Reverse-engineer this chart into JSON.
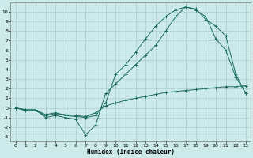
{
  "xlabel": "Humidex (Indice chaleur)",
  "bg_color": "#cceaea",
  "grid_color": "#aacccc",
  "line_color": "#1a6b5a",
  "xlim": [
    -0.5,
    23.5
  ],
  "ylim": [
    -3.5,
    11
  ],
  "xticks": [
    0,
    1,
    2,
    3,
    4,
    5,
    6,
    7,
    8,
    9,
    10,
    11,
    12,
    13,
    14,
    15,
    16,
    17,
    18,
    19,
    20,
    21,
    22,
    23
  ],
  "yticks": [
    -3,
    -2,
    -1,
    0,
    1,
    2,
    3,
    4,
    5,
    6,
    7,
    8,
    9,
    10
  ],
  "line_slowly_rising_x": [
    0,
    1,
    2,
    3,
    4,
    5,
    6,
    7,
    8,
    9,
    10,
    11,
    12,
    13,
    14,
    15,
    16,
    17,
    18,
    19,
    20,
    21,
    22,
    23
  ],
  "line_slowly_rising_y": [
    0,
    -0.3,
    -0.3,
    -0.8,
    -0.6,
    -0.7,
    -0.8,
    -0.9,
    -0.5,
    0.2,
    0.5,
    0.8,
    1.0,
    1.2,
    1.4,
    1.6,
    1.7,
    1.8,
    1.9,
    2.0,
    2.1,
    2.2,
    2.2,
    2.3
  ],
  "line_upper_x": [
    0,
    1,
    2,
    3,
    4,
    5,
    6,
    7,
    8,
    9,
    10,
    11,
    12,
    13,
    14,
    15,
    16,
    17,
    18,
    19,
    20,
    21,
    22,
    23
  ],
  "line_upper_y": [
    0,
    -0.2,
    -0.2,
    -0.7,
    -0.5,
    -0.8,
    -0.9,
    -1.0,
    -0.8,
    0.5,
    3.5,
    4.5,
    5.8,
    7.2,
    8.5,
    9.5,
    10.2,
    10.5,
    10.3,
    9.2,
    8.5,
    7.5,
    3.5,
    1.5
  ],
  "line_mid_x": [
    0,
    1,
    2,
    3,
    4,
    5,
    6,
    7,
    8,
    9,
    10,
    11,
    12,
    13,
    14,
    15,
    16,
    17,
    18,
    19,
    20,
    21,
    22,
    23
  ],
  "line_mid_y": [
    0,
    -0.2,
    -0.2,
    -1.0,
    -0.8,
    -1.0,
    -1.2,
    -2.8,
    -1.8,
    1.5,
    2.5,
    3.5,
    4.5,
    5.5,
    6.5,
    8.0,
    9.5,
    10.5,
    10.2,
    9.5,
    7.2,
    6.0,
    3.2,
    1.5
  ]
}
